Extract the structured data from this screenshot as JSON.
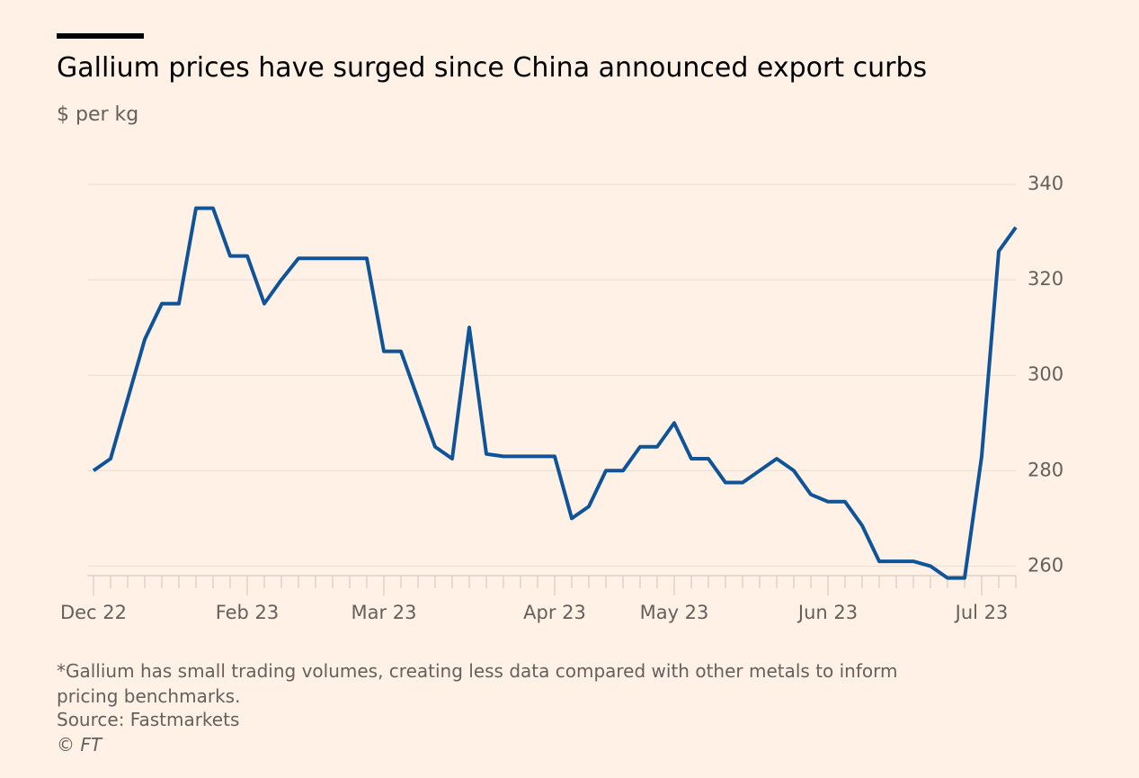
{
  "chart_data": {
    "type": "line",
    "title": "Gallium prices have surged since China announced export curbs",
    "subtitle": "$ per kg",
    "note": "*Gallium has small trading volumes, creating less data compared with other metals to inform pricing benchmarks.",
    "source": "Source: Fastmarkets",
    "copyright": "© FT",
    "categories": [
      "Dec 22",
      null,
      null,
      null,
      null,
      null,
      null,
      null,
      null,
      "Feb 23",
      null,
      null,
      null,
      null,
      null,
      null,
      null,
      "Mar 23",
      null,
      null,
      null,
      null,
      null,
      null,
      null,
      null,
      null,
      "Apr 23",
      null,
      null,
      null,
      null,
      null,
      null,
      "May 23",
      null,
      null,
      null,
      null,
      null,
      null,
      null,
      null,
      "Jun 23",
      null,
      null,
      null,
      null,
      null,
      null,
      null,
      null,
      "Jul 23",
      null,
      null
    ],
    "series": [
      {
        "name": "Gallium",
        "color": "#0f5499",
        "values": [
          280,
          282.5,
          295,
          307.5,
          315,
          315,
          335,
          335,
          325,
          325,
          315,
          320,
          324.5,
          324.5,
          324.5,
          324.5,
          324.5,
          305,
          305,
          295,
          285,
          282.5,
          310,
          283.5,
          283,
          283,
          283,
          283,
          270,
          272.5,
          280,
          280,
          285,
          285,
          290,
          282.5,
          282.5,
          277.5,
          277.5,
          280,
          282.5,
          280,
          275,
          273.5,
          273.5,
          268.5,
          261,
          261,
          261,
          260,
          257.5,
          257.5,
          283,
          326,
          331
        ]
      }
    ],
    "ylim": [
      258,
      340
    ],
    "yticks": [
      260,
      280,
      300,
      320,
      340
    ],
    "grid": true
  }
}
